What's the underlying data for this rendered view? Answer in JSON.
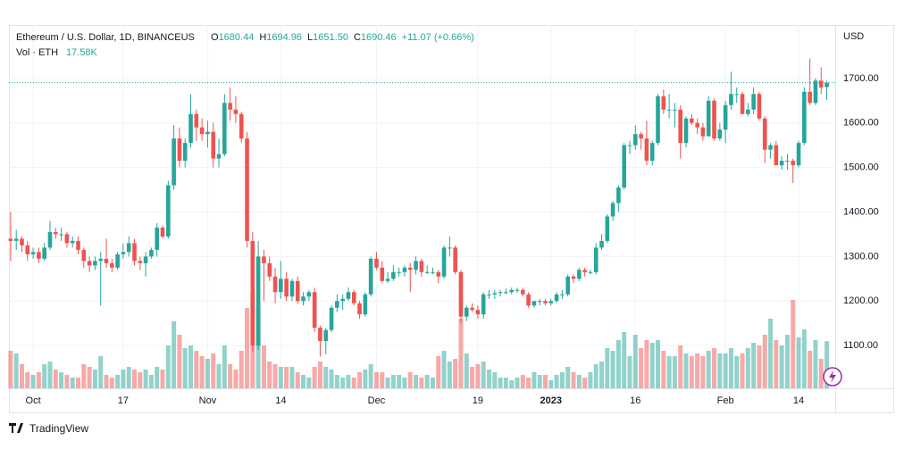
{
  "chart_data": {
    "type": "candlestick",
    "header": {
      "symbol": "Ethereum / U.S. Dollar, 1D, BINANCEUS",
      "ohlc": [
        {
          "label": "O",
          "value": "1680.44"
        },
        {
          "label": "H",
          "value": "1694.96"
        },
        {
          "label": "L",
          "value": "1651.50"
        },
        {
          "label": "C",
          "value": "1690.46"
        }
      ],
      "change": "+11.07 (+0.66%)",
      "volume_label": "Vol · ETH",
      "volume_value": "17.58K"
    },
    "y_axis_label": "USD",
    "brand": "TradingView",
    "up_color": "#26a69a",
    "down_color": "#ef5350",
    "grid": true,
    "xlim": [
      -0.3,
      146.5
    ],
    "ylim": [
      1004,
      1820
    ],
    "xticks": [
      {
        "value": 4,
        "label": "Oct"
      },
      {
        "value": 20,
        "label": "17"
      },
      {
        "value": 35,
        "label": "Nov"
      },
      {
        "value": 48,
        "label": "14"
      },
      {
        "value": 65,
        "label": "Dec"
      },
      {
        "value": 83,
        "label": "19"
      },
      {
        "value": 96,
        "label": "2023"
      },
      {
        "value": 111,
        "label": "16"
      },
      {
        "value": 127,
        "label": "Feb"
      },
      {
        "value": 140,
        "label": "14"
      }
    ],
    "yticks": [
      {
        "value": 1100,
        "label": "1100.00"
      },
      {
        "value": 1200,
        "label": "1200.00"
      },
      {
        "value": 1300,
        "label": "1300.00"
      },
      {
        "value": 1400,
        "label": "1400.00"
      },
      {
        "value": 1500,
        "label": "1500.00"
      },
      {
        "value": 1600,
        "label": "1600.00"
      },
      {
        "value": 1700,
        "label": "1700.00"
      }
    ],
    "open": [
      1340,
      1335,
      1340,
      1325,
      1305,
      1310,
      1295,
      1320,
      1355,
      1350,
      1350,
      1330,
      1335,
      1315,
      1290,
      1280,
      1290,
      1295,
      1285,
      1275,
      1305,
      1310,
      1330,
      1290,
      1285,
      1300,
      1315,
      1365,
      1345,
      1460,
      1565,
      1515,
      1555,
      1620,
      1590,
      1575,
      1580,
      1520,
      1530,
      1645,
      1630,
      1620,
      1565,
      1335,
      1100,
      1300,
      1285,
      1255,
      1220,
      1250,
      1210,
      1245,
      1200,
      1210,
      1220,
      1140,
      1110,
      1135,
      1185,
      1200,
      1205,
      1220,
      1195,
      1170,
      1215,
      1295,
      1275,
      1245,
      1250,
      1265,
      1265,
      1275,
      1270,
      1290,
      1265,
      1265,
      1265,
      1255,
      1320,
      1320,
      1265,
      1165,
      1185,
      1180,
      1170,
      1215,
      1215,
      1218,
      1220,
      1220,
      1225,
      1225,
      1215,
      1190,
      1200,
      1200,
      1195,
      1200,
      1215,
      1215,
      1255,
      1250,
      1270,
      1265,
      1265,
      1320,
      1335,
      1390,
      1420,
      1455,
      1550,
      1550,
      1575,
      1565,
      1515,
      1555,
      1660,
      1630,
      1630,
      1630,
      1555,
      1610,
      1600,
      1590,
      1570,
      1650,
      1565,
      1585,
      1640,
      1665,
      1665,
      1620,
      1630,
      1665,
      1610,
      1540,
      1550,
      1505,
      1515,
      1515,
      1505,
      1555,
      1670,
      1645,
      1695,
      1680.44
    ],
    "high": [
      1400,
      1360,
      1345,
      1335,
      1320,
      1320,
      1330,
      1380,
      1365,
      1365,
      1355,
      1345,
      1345,
      1320,
      1300,
      1300,
      1310,
      1340,
      1295,
      1310,
      1330,
      1345,
      1340,
      1300,
      1310,
      1320,
      1375,
      1370,
      1470,
      1595,
      1590,
      1565,
      1665,
      1630,
      1610,
      1605,
      1600,
      1565,
      1665,
      1680,
      1660,
      1625,
      1580,
      1355,
      1335,
      1315,
      1300,
      1275,
      1290,
      1265,
      1250,
      1255,
      1220,
      1225,
      1230,
      1145,
      1140,
      1190,
      1215,
      1215,
      1230,
      1225,
      1200,
      1220,
      1300,
      1310,
      1290,
      1265,
      1280,
      1275,
      1280,
      1285,
      1300,
      1295,
      1280,
      1275,
      1270,
      1325,
      1345,
      1325,
      1270,
      1190,
      1195,
      1190,
      1220,
      1225,
      1225,
      1225,
      1228,
      1230,
      1230,
      1230,
      1220,
      1200,
      1205,
      1205,
      1205,
      1220,
      1225,
      1260,
      1260,
      1275,
      1275,
      1270,
      1330,
      1350,
      1395,
      1425,
      1460,
      1555,
      1560,
      1595,
      1580,
      1605,
      1560,
      1665,
      1675,
      1665,
      1645,
      1640,
      1615,
      1620,
      1610,
      1600,
      1660,
      1655,
      1600,
      1650,
      1715,
      1680,
      1670,
      1645,
      1680,
      1670,
      1615,
      1555,
      1560,
      1525,
      1530,
      1520,
      1560,
      1680,
      1745,
      1700,
      1725,
      1694.96
    ],
    "low": [
      1290,
      1315,
      1310,
      1290,
      1295,
      1285,
      1290,
      1315,
      1340,
      1335,
      1320,
      1320,
      1305,
      1275,
      1265,
      1270,
      1190,
      1275,
      1265,
      1270,
      1295,
      1300,
      1280,
      1270,
      1255,
      1295,
      1300,
      1340,
      1340,
      1450,
      1500,
      1500,
      1545,
      1560,
      1560,
      1545,
      1500,
      1500,
      1525,
      1605,
      1600,
      1555,
      1320,
      1085,
      1090,
      1200,
      1245,
      1195,
      1205,
      1200,
      1200,
      1195,
      1190,
      1200,
      1130,
      1075,
      1080,
      1130,
      1175,
      1180,
      1200,
      1190,
      1160,
      1165,
      1210,
      1270,
      1240,
      1240,
      1245,
      1255,
      1255,
      1220,
      1260,
      1255,
      1260,
      1260,
      1240,
      1250,
      1300,
      1260,
      1150,
      1155,
      1175,
      1160,
      1160,
      1205,
      1205,
      1210,
      1215,
      1215,
      1218,
      1210,
      1185,
      1185,
      1190,
      1190,
      1190,
      1195,
      1205,
      1210,
      1240,
      1245,
      1255,
      1260,
      1260,
      1315,
      1330,
      1380,
      1400,
      1450,
      1530,
      1540,
      1540,
      1505,
      1505,
      1550,
      1620,
      1610,
      1590,
      1520,
      1545,
      1595,
      1575,
      1560,
      1570,
      1560,
      1560,
      1555,
      1630,
      1645,
      1620,
      1615,
      1620,
      1605,
      1510,
      1520,
      1505,
      1495,
      1495,
      1465,
      1500,
      1550,
      1640,
      1640,
      1665,
      1651.5
    ],
    "close": [
      1335,
      1340,
      1325,
      1305,
      1310,
      1295,
      1320,
      1355,
      1350,
      1350,
      1330,
      1335,
      1315,
      1290,
      1280,
      1290,
      1295,
      1285,
      1275,
      1305,
      1310,
      1330,
      1290,
      1285,
      1300,
      1315,
      1365,
      1345,
      1460,
      1565,
      1515,
      1555,
      1620,
      1590,
      1575,
      1580,
      1520,
      1530,
      1645,
      1630,
      1620,
      1565,
      1335,
      1100,
      1300,
      1285,
      1255,
      1220,
      1250,
      1210,
      1245,
      1200,
      1210,
      1220,
      1140,
      1110,
      1135,
      1185,
      1200,
      1205,
      1220,
      1195,
      1170,
      1215,
      1295,
      1275,
      1245,
      1250,
      1265,
      1265,
      1275,
      1270,
      1290,
      1265,
      1265,
      1265,
      1255,
      1320,
      1320,
      1265,
      1165,
      1185,
      1180,
      1170,
      1215,
      1215,
      1218,
      1220,
      1220,
      1225,
      1225,
      1215,
      1190,
      1200,
      1200,
      1195,
      1200,
      1215,
      1215,
      1255,
      1250,
      1270,
      1265,
      1265,
      1320,
      1335,
      1390,
      1420,
      1455,
      1550,
      1550,
      1575,
      1565,
      1515,
      1555,
      1660,
      1630,
      1630,
      1630,
      1555,
      1610,
      1600,
      1590,
      1570,
      1650,
      1565,
      1585,
      1640,
      1665,
      1665,
      1620,
      1630,
      1665,
      1610,
      1540,
      1550,
      1505,
      1515,
      1515,
      1505,
      1555,
      1670,
      1645,
      1695,
      1679.39,
      1690.46
    ],
    "volume": [
      14,
      13,
      9,
      6,
      5,
      6,
      9,
      10,
      7,
      6,
      5,
      4,
      4,
      9,
      8,
      7,
      12,
      5,
      4,
      5,
      7,
      8,
      7,
      6,
      7,
      5,
      8,
      7,
      16,
      25,
      20,
      15,
      16,
      14,
      12,
      11,
      13,
      9,
      16,
      9,
      7,
      14,
      30,
      36,
      30,
      16,
      10,
      9,
      8,
      8,
      8,
      6,
      5,
      4,
      8,
      10,
      8,
      7,
      5,
      4,
      5,
      4,
      6,
      7,
      9,
      6,
      6,
      4,
      5,
      5,
      4,
      6,
      5,
      4,
      5,
      4,
      12,
      14,
      10,
      11,
      26,
      13,
      8,
      9,
      10,
      7,
      6,
      4,
      4,
      3,
      4,
      5,
      4,
      6,
      5,
      5,
      3,
      5,
      6,
      8,
      6,
      5,
      4,
      6,
      9,
      10,
      15,
      14,
      18,
      21,
      12,
      20,
      15,
      18,
      17,
      18,
      14,
      12,
      12,
      16,
      13,
      12,
      13,
      12,
      14,
      15,
      13,
      13,
      15,
      12,
      13,
      15,
      17,
      16,
      20,
      26,
      18,
      16,
      20,
      33,
      19,
      22,
      14,
      18,
      11,
      17.58
    ]
  }
}
